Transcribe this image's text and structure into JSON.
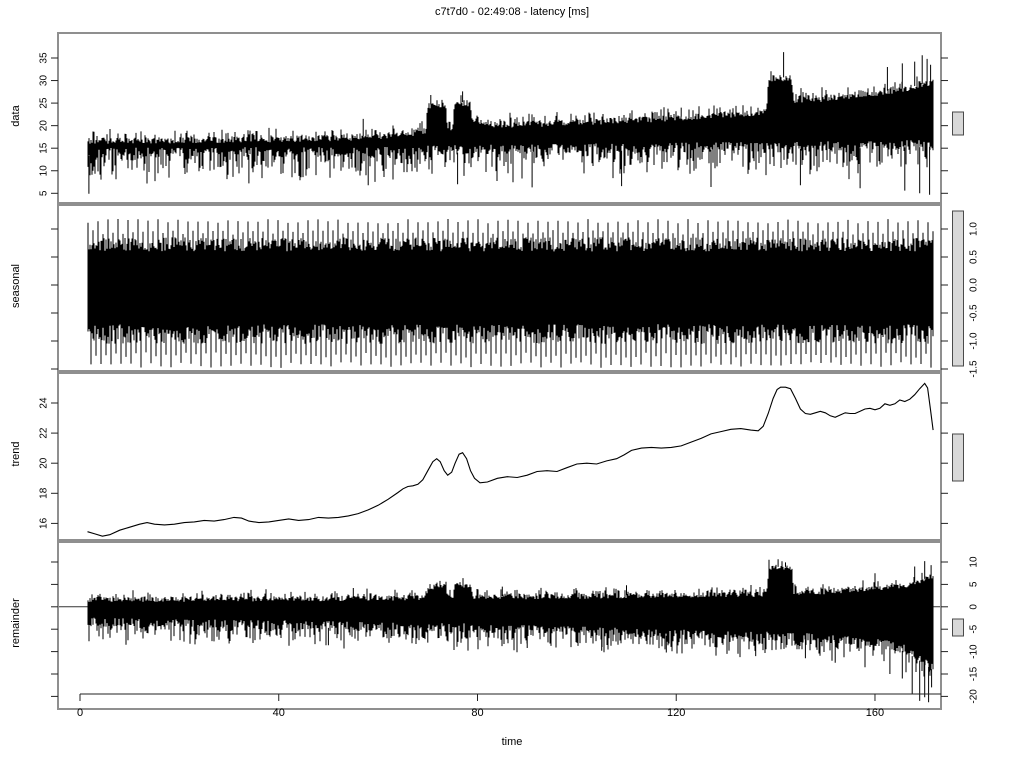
{
  "title": "c7t7d0 - 02:49:08 - latency [ms]",
  "colors": {
    "series": "#000000",
    "panel_border": "#8f8f8f",
    "scalebar_fill": "#d8d8d8",
    "scalebar_border": "#4a4a4a",
    "background": "#ffffff"
  },
  "chart_data": {
    "type": "line",
    "variant": "stl_decomposition",
    "title": "c7t7d0 - 02:49:08 - latency [ms]",
    "xlabel": "time",
    "x_range": [
      0,
      172
    ],
    "x_ticks": [
      "0",
      "40",
      "80",
      "120",
      "160"
    ],
    "x_tick_values": [
      0,
      40,
      80,
      120,
      160
    ],
    "grid": false,
    "panels": [
      {
        "label": "data",
        "style": "noise-band",
        "axis_label_side": "left",
        "yticks": [
          5,
          10,
          15,
          20,
          25,
          30,
          35
        ],
        "ytick_labels": [
          "5",
          "10",
          "15",
          "20",
          "25",
          "30",
          "35"
        ],
        "ylim": [
          4.5,
          40.5
        ],
        "t_start": 1.6,
        "t_end": 171.6,
        "core": [
          [
            1.5,
            17.3,
            12.9
          ],
          [
            15,
            17.4,
            12.9
          ],
          [
            30,
            17.55,
            13.0
          ],
          [
            45,
            17.8,
            13.05
          ],
          [
            55,
            18.1,
            13.1
          ],
          [
            62,
            18.5,
            13.2
          ],
          [
            67,
            19.1,
            13.3
          ],
          [
            69.6,
            19.5,
            13.4
          ],
          [
            70.0,
            25.2,
            13.4
          ],
          [
            73.6,
            25.2,
            13.4
          ],
          [
            74.0,
            19.8,
            13.4
          ],
          [
            75.0,
            19.8,
            13.5
          ],
          [
            75.4,
            25.7,
            13.5
          ],
          [
            78.6,
            25.7,
            13.5
          ],
          [
            79.0,
            21.2,
            13.5
          ],
          [
            84,
            20.9,
            13.6
          ],
          [
            92,
            21.1,
            13.7
          ],
          [
            100,
            21.4,
            13.8
          ],
          [
            108,
            21.8,
            13.9
          ],
          [
            116,
            22.2,
            14.0
          ],
          [
            124,
            22.7,
            14.1
          ],
          [
            132,
            23.2,
            14.2
          ],
          [
            138.2,
            23.7,
            14.3
          ],
          [
            138.6,
            31.2,
            14.3
          ],
          [
            143.2,
            31.2,
            14.3
          ],
          [
            143.6,
            26.2,
            14.3
          ],
          [
            150,
            26.7,
            14.4
          ],
          [
            156,
            27.4,
            14.5
          ],
          [
            162,
            28.2,
            14.6
          ],
          [
            167,
            29.0,
            14.7
          ],
          [
            171.5,
            30.3,
            14.8
          ]
        ],
        "noise": {
          "seed": 3,
          "topVar": 1.4,
          "topSpikeP": 0.18,
          "topSpikeMax": 2.2,
          "botVar": 2.2,
          "botSpikeP": 0.38,
          "botSpikeMax": 6.5
        },
        "extremes_up": [
          [
            70.6,
            26.8
          ],
          [
            77.0,
            27.6
          ],
          [
            141.6,
            36.3
          ],
          [
            162.5,
            33.0
          ],
          [
            165.5,
            33.8
          ],
          [
            168.0,
            34.2
          ],
          [
            169.5,
            35.6
          ],
          [
            170.5,
            34.8
          ],
          [
            171.2,
            33.5
          ],
          [
            57,
            21.5
          ],
          [
            96,
            23.0
          ],
          [
            121,
            24.0
          ]
        ],
        "extremes_dn": [
          [
            1.8,
            4.9
          ],
          [
            34,
            7.2
          ],
          [
            58,
            6.8
          ],
          [
            76,
            7.0
          ],
          [
            91,
            6.3
          ],
          [
            109,
            6.6
          ],
          [
            127,
            6.4
          ],
          [
            145,
            6.8
          ],
          [
            157,
            6.1
          ],
          [
            166,
            5.6
          ],
          [
            169,
            5.0
          ],
          [
            171,
            4.7
          ]
        ],
        "zero_line": false
      },
      {
        "label": "seasonal",
        "style": "periodic",
        "axis_label_side": "right",
        "yticks": [
          -1.5,
          -1.0,
          -0.5,
          0.0,
          0.5,
          1.0
        ],
        "ytick_labels": [
          "-1.5",
          "-1.0",
          "-0.5",
          "0.0",
          "0.5",
          "1.0"
        ],
        "ylim": [
          -1.55,
          1.45
        ],
        "t_start": 1.6,
        "t_end": 171.6,
        "core_hi": 0.85,
        "core_lo": -1.05,
        "period_units": 2,
        "up_levels": [
          1.18,
          0.98
        ],
        "down_levels": [
          -1.48,
          -1.3
        ],
        "noise": {
          "seed": 7,
          "topVar": 0.25,
          "botVar": 0.35
        },
        "zero_line": false
      },
      {
        "label": "trend",
        "style": "line",
        "axis_label_side": "left",
        "yticks": [
          16,
          18,
          20,
          22,
          24
        ],
        "ytick_labels": [
          "16",
          "18",
          "20",
          "22",
          "24"
        ],
        "ylim": [
          14.9,
          26.0
        ],
        "points": [
          [
            1.5,
            15.45
          ],
          [
            3,
            15.3
          ],
          [
            4.5,
            15.15
          ],
          [
            6,
            15.25
          ],
          [
            8,
            15.55
          ],
          [
            10,
            15.75
          ],
          [
            12,
            15.95
          ],
          [
            13.5,
            16.05
          ],
          [
            15,
            15.95
          ],
          [
            17,
            15.9
          ],
          [
            19,
            15.95
          ],
          [
            21,
            16.05
          ],
          [
            23,
            16.1
          ],
          [
            25,
            16.2
          ],
          [
            27,
            16.15
          ],
          [
            29,
            16.25
          ],
          [
            31,
            16.4
          ],
          [
            32.5,
            16.35
          ],
          [
            34,
            16.15
          ],
          [
            36,
            16.05
          ],
          [
            38,
            16.1
          ],
          [
            40,
            16.2
          ],
          [
            42,
            16.3
          ],
          [
            44,
            16.2
          ],
          [
            46,
            16.25
          ],
          [
            48,
            16.4
          ],
          [
            50,
            16.35
          ],
          [
            52,
            16.4
          ],
          [
            54,
            16.5
          ],
          [
            56,
            16.65
          ],
          [
            58,
            16.9
          ],
          [
            60,
            17.2
          ],
          [
            62,
            17.6
          ],
          [
            64,
            18.05
          ],
          [
            65,
            18.3
          ],
          [
            66,
            18.45
          ],
          [
            67,
            18.5
          ],
          [
            68,
            18.6
          ],
          [
            69,
            18.9
          ],
          [
            70,
            19.5
          ],
          [
            71,
            20.1
          ],
          [
            71.8,
            20.3
          ],
          [
            72.5,
            20.1
          ],
          [
            73.3,
            19.5
          ],
          [
            74,
            19.2
          ],
          [
            74.8,
            19.4
          ],
          [
            75.5,
            20.0
          ],
          [
            76.3,
            20.6
          ],
          [
            77,
            20.7
          ],
          [
            77.8,
            20.3
          ],
          [
            78.6,
            19.5
          ],
          [
            79.4,
            19.0
          ],
          [
            80.5,
            18.7
          ],
          [
            82,
            18.75
          ],
          [
            84,
            19.0
          ],
          [
            86,
            19.1
          ],
          [
            88,
            19.05
          ],
          [
            90,
            19.2
          ],
          [
            92,
            19.45
          ],
          [
            94,
            19.5
          ],
          [
            96,
            19.45
          ],
          [
            98,
            19.7
          ],
          [
            100,
            19.95
          ],
          [
            102,
            20.0
          ],
          [
            104,
            19.95
          ],
          [
            106,
            20.15
          ],
          [
            108,
            20.3
          ],
          [
            109.5,
            20.55
          ],
          [
            111,
            20.85
          ],
          [
            113,
            21.0
          ],
          [
            115,
            21.05
          ],
          [
            117,
            21.0
          ],
          [
            119,
            21.05
          ],
          [
            121,
            21.15
          ],
          [
            123,
            21.4
          ],
          [
            125,
            21.65
          ],
          [
            127,
            21.95
          ],
          [
            129,
            22.1
          ],
          [
            131,
            22.25
          ],
          [
            133,
            22.3
          ],
          [
            135,
            22.2
          ],
          [
            136.5,
            22.15
          ],
          [
            137.5,
            22.45
          ],
          [
            138.5,
            23.3
          ],
          [
            139.5,
            24.3
          ],
          [
            140.3,
            24.9
          ],
          [
            141,
            25.05
          ],
          [
            142,
            25.05
          ],
          [
            143,
            24.95
          ],
          [
            144,
            24.3
          ],
          [
            145,
            23.6
          ],
          [
            146,
            23.3
          ],
          [
            147,
            23.25
          ],
          [
            148,
            23.35
          ],
          [
            149,
            23.45
          ],
          [
            150,
            23.35
          ],
          [
            151,
            23.15
          ],
          [
            152,
            23.05
          ],
          [
            153,
            23.2
          ],
          [
            154,
            23.35
          ],
          [
            155,
            23.3
          ],
          [
            156,
            23.3
          ],
          [
            157,
            23.45
          ],
          [
            158,
            23.6
          ],
          [
            159,
            23.65
          ],
          [
            160,
            23.55
          ],
          [
            161,
            23.65
          ],
          [
            162,
            23.95
          ],
          [
            163,
            23.85
          ],
          [
            164,
            23.95
          ],
          [
            165,
            24.2
          ],
          [
            166,
            24.1
          ],
          [
            167,
            24.25
          ],
          [
            168,
            24.55
          ],
          [
            169,
            24.95
          ],
          [
            170,
            25.3
          ],
          [
            170.6,
            25.0
          ],
          [
            171.2,
            23.5
          ],
          [
            171.7,
            22.2
          ]
        ],
        "zero_line": false
      },
      {
        "label": "remainder",
        "style": "noise-band",
        "axis_label_side": "right",
        "yticks": [
          -20,
          -15,
          -10,
          -5,
          0,
          5,
          10
        ],
        "ytick_labels": [
          "-20",
          "-15",
          "-10",
          "-5",
          "0",
          "5",
          "10"
        ],
        "ylim": [
          -21.0,
          14.5
        ],
        "t_start": 1.6,
        "t_end": 171.6,
        "core": [
          [
            1.5,
            2.2,
            -4.4
          ],
          [
            20,
            2.3,
            -4.7
          ],
          [
            40,
            2.4,
            -5.0
          ],
          [
            60,
            2.5,
            -5.4
          ],
          [
            69.6,
            2.6,
            -5.6
          ],
          [
            70,
            5.1,
            -5.6
          ],
          [
            73.6,
            5.1,
            -5.6
          ],
          [
            74,
            2.7,
            -5.6
          ],
          [
            75,
            2.7,
            -5.7
          ],
          [
            75.4,
            5.5,
            -5.7
          ],
          [
            78.6,
            5.5,
            -5.7
          ],
          [
            79,
            2.9,
            -5.7
          ],
          [
            90,
            2.9,
            -6.1
          ],
          [
            100,
            3.0,
            -6.4
          ],
          [
            110,
            3.1,
            -6.7
          ],
          [
            120,
            3.2,
            -7.0
          ],
          [
            130,
            3.3,
            -7.3
          ],
          [
            138.2,
            3.4,
            -7.5
          ],
          [
            138.6,
            9.4,
            -7.5
          ],
          [
            143.2,
            9.4,
            -7.6
          ],
          [
            143.6,
            3.8,
            -7.7
          ],
          [
            150,
            4.0,
            -8.0
          ],
          [
            156,
            4.4,
            -8.6
          ],
          [
            162,
            4.9,
            -9.4
          ],
          [
            166,
            5.4,
            -10.5
          ],
          [
            169,
            6.2,
            -12.5
          ],
          [
            171.5,
            7.5,
            -14.5
          ]
        ],
        "noise": {
          "seed": 11,
          "topVar": 1.2,
          "topSpikeP": 0.15,
          "topSpikeMax": 1.8,
          "botVar": 2.0,
          "botSpikeP": 0.38,
          "botSpikeMax": 4.5
        },
        "extremes_up": [
          [
            55,
            4.2
          ],
          [
            85,
            4.5
          ],
          [
            110,
            4.8
          ],
          [
            140.5,
            10.6
          ],
          [
            142,
            9.9
          ],
          [
            160,
            7.5
          ],
          [
            168,
            9.0
          ],
          [
            170,
            10.2
          ],
          [
            171.3,
            9.3
          ]
        ],
        "extremes_dn": [
          [
            30,
            -8.2
          ],
          [
            50,
            -8.6
          ],
          [
            70,
            -8.0
          ],
          [
            90,
            -9.2
          ],
          [
            105,
            -9.8
          ],
          [
            118,
            -10.2
          ],
          [
            128,
            -10.6
          ],
          [
            136,
            -11.0
          ],
          [
            146,
            -11.5
          ],
          [
            152,
            -12.5
          ],
          [
            158,
            -13.5
          ],
          [
            163,
            -15.0
          ],
          [
            165.5,
            -16.0
          ],
          [
            167.5,
            -19.5
          ],
          [
            169,
            -21.0
          ],
          [
            170,
            -20.2
          ],
          [
            170.8,
            -21.3
          ],
          [
            171.4,
            -18.0
          ]
        ],
        "zero_line": true
      }
    ],
    "xlabel_text": "time",
    "legend": null
  },
  "xlabel": "time"
}
